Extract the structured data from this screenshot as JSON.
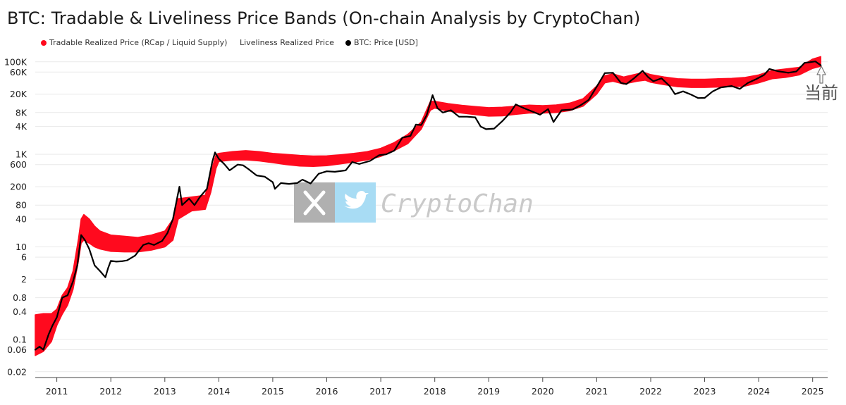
{
  "title": "BTC: Tradable & Liveliness Price Bands (On-chain Analysis by CryptoChan)",
  "legend": [
    {
      "label": "Tradable Realized Price (RCap / Liquid Supply)",
      "color": "#ff0a1e",
      "marker": "dot"
    },
    {
      "label": "Liveliness Realized Price",
      "color": "",
      "marker": "none"
    },
    {
      "label": "BTC: Price [USD]",
      "color": "#000000",
      "marker": "dot"
    }
  ],
  "watermark": {
    "text": "CryptoChan",
    "icons": [
      "x-logo-icon",
      "twitter-bird-icon"
    ]
  },
  "annotation": {
    "text": "当前",
    "icon": "arrow-up-icon"
  },
  "colors": {
    "band": "#ff0a1e",
    "price": "#000000",
    "grid": "#e9e9e9"
  },
  "chart_data": {
    "type": "area",
    "title": "BTC: Tradable & Liveliness Price Bands (On-chain Analysis by CryptoChan)",
    "xlabel": "",
    "ylabel": "",
    "yscale": "log",
    "ylim": [
      0.015,
      200000
    ],
    "xlim": [
      2010.6,
      2025.2
    ],
    "grid": true,
    "legend_position": "top-left",
    "y_ticks": [
      {
        "value": 0.02,
        "label": "0.02"
      },
      {
        "value": 0.06,
        "label": "0.06"
      },
      {
        "value": 0.1,
        "label": "0.1"
      },
      {
        "value": 0.4,
        "label": "0.4"
      },
      {
        "value": 0.8,
        "label": "0.8"
      },
      {
        "value": 2,
        "label": "2"
      },
      {
        "value": 6,
        "label": "6"
      },
      {
        "value": 10,
        "label": "10"
      },
      {
        "value": 40,
        "label": "40"
      },
      {
        "value": 80,
        "label": "80"
      },
      {
        "value": 200,
        "label": "200"
      },
      {
        "value": 600,
        "label": "600"
      },
      {
        "value": 1000,
        "label": "1K"
      },
      {
        "value": 4000,
        "label": "4K"
      },
      {
        "value": 8000,
        "label": "8K"
      },
      {
        "value": 20000,
        "label": "20K"
      },
      {
        "value": 60000,
        "label": "60K"
      },
      {
        "value": 100000,
        "label": "100K"
      }
    ],
    "x_ticks": [
      {
        "value": 2011,
        "label": "2011"
      },
      {
        "value": 2012,
        "label": "2012"
      },
      {
        "value": 2013,
        "label": "2013"
      },
      {
        "value": 2014,
        "label": "2014"
      },
      {
        "value": 2015,
        "label": "2015"
      },
      {
        "value": 2016,
        "label": "2016"
      },
      {
        "value": 2017,
        "label": "2017"
      },
      {
        "value": 2018,
        "label": "2018"
      },
      {
        "value": 2019,
        "label": "2019"
      },
      {
        "value": 2020,
        "label": "2020"
      },
      {
        "value": 2021,
        "label": "2021"
      },
      {
        "value": 2022,
        "label": "2022"
      },
      {
        "value": 2023,
        "label": "2023"
      },
      {
        "value": 2024,
        "label": "2024"
      },
      {
        "value": 2025,
        "label": "2025"
      }
    ],
    "series": [
      {
        "name": "Tradable Realized Price (RCap / Liquid Supply)",
        "kind": "band",
        "points": [
          [
            2010.6,
            0.045,
            0.34
          ],
          [
            2010.75,
            0.055,
            0.36
          ],
          [
            2010.9,
            0.09,
            0.36
          ],
          [
            2011.0,
            0.2,
            0.45
          ],
          [
            2011.1,
            0.35,
            0.9
          ],
          [
            2011.2,
            0.55,
            1.3
          ],
          [
            2011.3,
            1.2,
            3.0
          ],
          [
            2011.4,
            5.0,
            15
          ],
          [
            2011.45,
            12,
            40
          ],
          [
            2011.5,
            14,
            50
          ],
          [
            2011.6,
            12,
            40
          ],
          [
            2011.7,
            10,
            28
          ],
          [
            2011.8,
            9,
            22
          ],
          [
            2012.0,
            8.0,
            18
          ],
          [
            2012.25,
            7.8,
            17
          ],
          [
            2012.5,
            7.8,
            16
          ],
          [
            2012.75,
            8.5,
            18
          ],
          [
            2013.0,
            10,
            22
          ],
          [
            2013.15,
            14,
            40
          ],
          [
            2013.25,
            40,
            110
          ],
          [
            2013.5,
            60,
            120
          ],
          [
            2013.75,
            65,
            130
          ],
          [
            2013.85,
            150,
            400
          ],
          [
            2013.95,
            500,
            1000
          ],
          [
            2014.0,
            700,
            1050
          ],
          [
            2014.25,
            750,
            1150
          ],
          [
            2014.5,
            760,
            1200
          ],
          [
            2014.75,
            720,
            1150
          ],
          [
            2015.0,
            660,
            1050
          ],
          [
            2015.25,
            600,
            1000
          ],
          [
            2015.5,
            560,
            950
          ],
          [
            2015.75,
            550,
            920
          ],
          [
            2016.0,
            570,
            930
          ],
          [
            2016.25,
            620,
            980
          ],
          [
            2016.5,
            680,
            1050
          ],
          [
            2016.75,
            760,
            1150
          ],
          [
            2017.0,
            900,
            1350
          ],
          [
            2017.25,
            1200,
            1800
          ],
          [
            2017.5,
            1700,
            2700
          ],
          [
            2017.75,
            3500,
            5000
          ],
          [
            2017.92,
            9000,
            14000
          ],
          [
            2018.0,
            10000,
            14000
          ],
          [
            2018.25,
            8600,
            12500
          ],
          [
            2018.5,
            7800,
            11500
          ],
          [
            2018.75,
            7200,
            10800
          ],
          [
            2019.0,
            6700,
            10200
          ],
          [
            2019.25,
            6800,
            10400
          ],
          [
            2019.5,
            7300,
            11000
          ],
          [
            2019.75,
            7800,
            11600
          ],
          [
            2020.0,
            7800,
            11300
          ],
          [
            2020.25,
            8000,
            11700
          ],
          [
            2020.5,
            8800,
            12800
          ],
          [
            2020.75,
            11000,
            16000
          ],
          [
            2021.0,
            20000,
            30000
          ],
          [
            2021.15,
            35000,
            50000
          ],
          [
            2021.3,
            38000,
            55000
          ],
          [
            2021.5,
            33000,
            47000
          ],
          [
            2021.75,
            38000,
            55000
          ],
          [
            2021.9,
            40000,
            58000
          ],
          [
            2022.0,
            36000,
            53000
          ],
          [
            2022.25,
            32000,
            47000
          ],
          [
            2022.5,
            29000,
            43000
          ],
          [
            2022.75,
            28000,
            42000
          ],
          [
            2023.0,
            28000,
            42000
          ],
          [
            2023.25,
            28500,
            43000
          ],
          [
            2023.5,
            29000,
            44000
          ],
          [
            2023.75,
            30000,
            46000
          ],
          [
            2024.0,
            35000,
            52000
          ],
          [
            2024.25,
            43000,
            65000
          ],
          [
            2024.5,
            46000,
            70000
          ],
          [
            2024.75,
            52000,
            76000
          ],
          [
            2025.0,
            72000,
            115000
          ],
          [
            2025.15,
            80000,
            130000
          ]
        ]
      },
      {
        "name": "BTC: Price [USD]",
        "kind": "line",
        "points": [
          [
            2010.6,
            0.06
          ],
          [
            2010.68,
            0.07
          ],
          [
            2010.75,
            0.06
          ],
          [
            2010.85,
            0.13
          ],
          [
            2010.92,
            0.2
          ],
          [
            2011.0,
            0.3
          ],
          [
            2011.1,
            0.8
          ],
          [
            2011.2,
            0.9
          ],
          [
            2011.3,
            1.8
          ],
          [
            2011.38,
            4
          ],
          [
            2011.45,
            18
          ],
          [
            2011.52,
            14
          ],
          [
            2011.6,
            9
          ],
          [
            2011.7,
            4
          ],
          [
            2011.8,
            3
          ],
          [
            2011.9,
            2.2
          ],
          [
            2011.95,
            3.5
          ],
          [
            2012.0,
            5
          ],
          [
            2012.1,
            4.8
          ],
          [
            2012.2,
            4.9
          ],
          [
            2012.3,
            5.1
          ],
          [
            2012.45,
            6.5
          ],
          [
            2012.6,
            11
          ],
          [
            2012.7,
            12
          ],
          [
            2012.8,
            11
          ],
          [
            2012.95,
            13.5
          ],
          [
            2013.05,
            20
          ],
          [
            2013.15,
            40
          ],
          [
            2013.27,
            200
          ],
          [
            2013.32,
            80
          ],
          [
            2013.45,
            110
          ],
          [
            2013.55,
            80
          ],
          [
            2013.65,
            120
          ],
          [
            2013.78,
            180
          ],
          [
            2013.88,
            700
          ],
          [
            2013.93,
            1100
          ],
          [
            2014.0,
            800
          ],
          [
            2014.1,
            620
          ],
          [
            2014.2,
            450
          ],
          [
            2014.35,
            600
          ],
          [
            2014.45,
            580
          ],
          [
            2014.55,
            480
          ],
          [
            2014.7,
            350
          ],
          [
            2014.85,
            330
          ],
          [
            2015.0,
            250
          ],
          [
            2015.04,
            180
          ],
          [
            2015.15,
            240
          ],
          [
            2015.3,
            230
          ],
          [
            2015.45,
            240
          ],
          [
            2015.55,
            285
          ],
          [
            2015.7,
            235
          ],
          [
            2015.85,
            380
          ],
          [
            2016.0,
            430
          ],
          [
            2016.15,
            420
          ],
          [
            2016.35,
            450
          ],
          [
            2016.47,
            680
          ],
          [
            2016.6,
            620
          ],
          [
            2016.8,
            720
          ],
          [
            2016.97,
            960
          ],
          [
            2017.1,
            1000
          ],
          [
            2017.25,
            1200
          ],
          [
            2017.4,
            2300
          ],
          [
            2017.55,
            2500
          ],
          [
            2017.65,
            4400
          ],
          [
            2017.75,
            4300
          ],
          [
            2017.85,
            7000
          ],
          [
            2017.96,
            19000
          ],
          [
            2018.05,
            10000
          ],
          [
            2018.15,
            8000
          ],
          [
            2018.3,
            9000
          ],
          [
            2018.45,
            6500
          ],
          [
            2018.6,
            6500
          ],
          [
            2018.75,
            6300
          ],
          [
            2018.85,
            4000
          ],
          [
            2018.95,
            3500
          ],
          [
            2019.1,
            3600
          ],
          [
            2019.25,
            5200
          ],
          [
            2019.4,
            8000
          ],
          [
            2019.5,
            12000
          ],
          [
            2019.65,
            10000
          ],
          [
            2019.8,
            8500
          ],
          [
            2019.95,
            7200
          ],
          [
            2020.1,
            9500
          ],
          [
            2020.2,
            5000
          ],
          [
            2020.35,
            9000
          ],
          [
            2020.55,
            9300
          ],
          [
            2020.7,
            11500
          ],
          [
            2020.85,
            15000
          ],
          [
            2021.0,
            29000
          ],
          [
            2021.15,
            57000
          ],
          [
            2021.3,
            58000
          ],
          [
            2021.45,
            35000
          ],
          [
            2021.55,
            33000
          ],
          [
            2021.7,
            45000
          ],
          [
            2021.85,
            64000
          ],
          [
            2021.95,
            47000
          ],
          [
            2022.05,
            38000
          ],
          [
            2022.2,
            44000
          ],
          [
            2022.35,
            30000
          ],
          [
            2022.45,
            20000
          ],
          [
            2022.6,
            23000
          ],
          [
            2022.75,
            19500
          ],
          [
            2022.88,
            16500
          ],
          [
            2023.0,
            16600
          ],
          [
            2023.15,
            23000
          ],
          [
            2023.3,
            28000
          ],
          [
            2023.5,
            30000
          ],
          [
            2023.65,
            26000
          ],
          [
            2023.8,
            35000
          ],
          [
            2023.95,
            42000
          ],
          [
            2024.1,
            52000
          ],
          [
            2024.2,
            70000
          ],
          [
            2024.35,
            63000
          ],
          [
            2024.55,
            58000
          ],
          [
            2024.7,
            62000
          ],
          [
            2024.85,
            95000
          ],
          [
            2024.95,
            98000
          ],
          [
            2025.05,
            102000
          ],
          [
            2025.15,
            84000
          ]
        ]
      }
    ]
  }
}
